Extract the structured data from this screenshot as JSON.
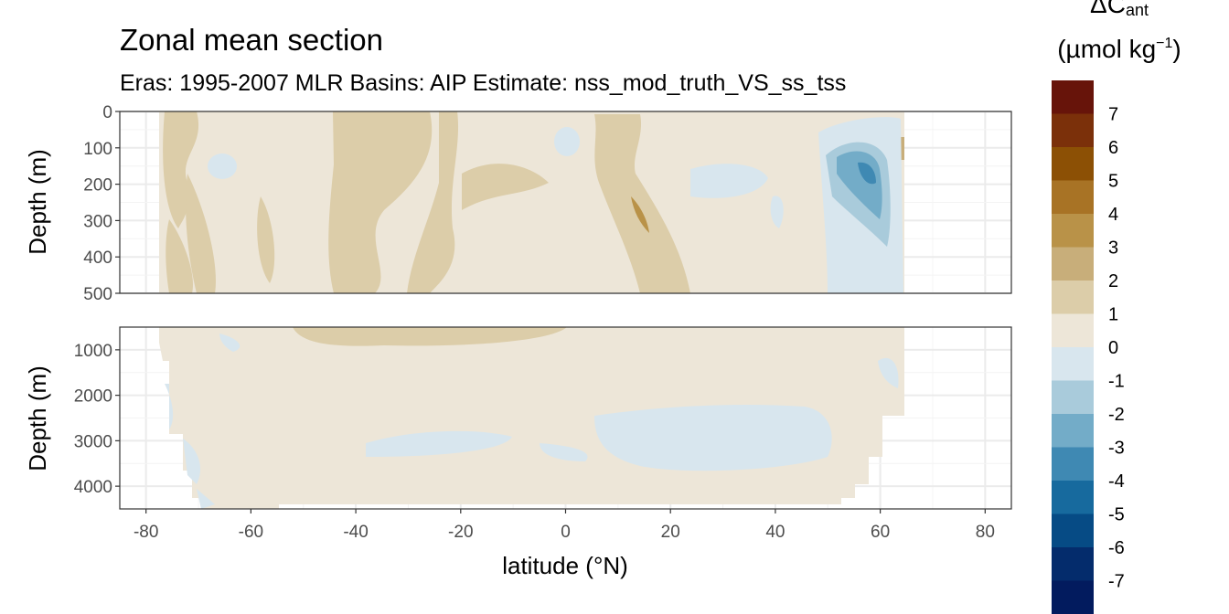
{
  "chart_data": {
    "type": "heatmap",
    "title": "Zonal mean section",
    "subtitle": "Eras: 1995-2007 MLR Basins: AIP Estimate: nss_mod_truth_VS_ss_tss",
    "xlabel": "latitude (°N)",
    "x_ticks": [
      "-80",
      "-60",
      "-40",
      "-20",
      "0",
      "20",
      "40",
      "60",
      "80"
    ],
    "xlim": [
      -85,
      85
    ],
    "legend": {
      "title_main": "ΔC",
      "title_sub": "ant",
      "unit_pre": "(µmol kg",
      "unit_sup": "−1",
      "unit_post": ")",
      "position": "right",
      "labels": [
        "7",
        "6",
        "5",
        "4",
        "3",
        "2",
        "1",
        "0",
        "-1",
        "-2",
        "-3",
        "-4",
        "-5",
        "-6",
        "-7"
      ],
      "bins": [
        {
          "range": [
            7,
            8
          ],
          "color": "#67140a"
        },
        {
          "range": [
            6,
            7
          ],
          "color": "#7b300a"
        },
        {
          "range": [
            5,
            6
          ],
          "color": "#8c5005"
        },
        {
          "range": [
            4,
            5
          ],
          "color": "#a87325"
        },
        {
          "range": [
            3,
            4
          ],
          "color": "#b99248"
        },
        {
          "range": [
            2,
            3
          ],
          "color": "#c8ae7a"
        },
        {
          "range": [
            1,
            2
          ],
          "color": "#dccda9"
        },
        {
          "range": [
            0,
            1
          ],
          "color": "#ede6d8"
        },
        {
          "range": [
            -1,
            0
          ],
          "color": "#d8e6ee"
        },
        {
          "range": [
            -2,
            -1
          ],
          "color": "#a9cbdb"
        },
        {
          "range": [
            -3,
            -2
          ],
          "color": "#73acc8"
        },
        {
          "range": [
            -4,
            -3
          ],
          "color": "#3f89b3"
        },
        {
          "range": [
            -5,
            -4
          ],
          "color": "#176a9e"
        },
        {
          "range": [
            -6,
            -5
          ],
          "color": "#064b85"
        },
        {
          "range": [
            -7,
            -6
          ],
          "color": "#042c6c"
        },
        {
          "range": [
            -8,
            -7
          ],
          "color": "#021b5e"
        }
      ]
    },
    "panels": [
      {
        "name": "upper",
        "ylabel": "Depth (m)",
        "ylim": [
          0,
          500
        ],
        "y_reversed": true,
        "y_ticks": [
          "0",
          "100",
          "200",
          "300",
          "400",
          "500"
        ],
        "data_extent_lat": [
          -77.5,
          64.5
        ]
      },
      {
        "name": "lower",
        "ylabel": "Depth (m)",
        "ylim": [
          500,
          4500
        ],
        "y_reversed": true,
        "y_ticks": [
          "1000",
          "2000",
          "3000",
          "4000"
        ],
        "data_extent_lat": [
          -77.5,
          64.5
        ]
      }
    ],
    "grid": true
  }
}
